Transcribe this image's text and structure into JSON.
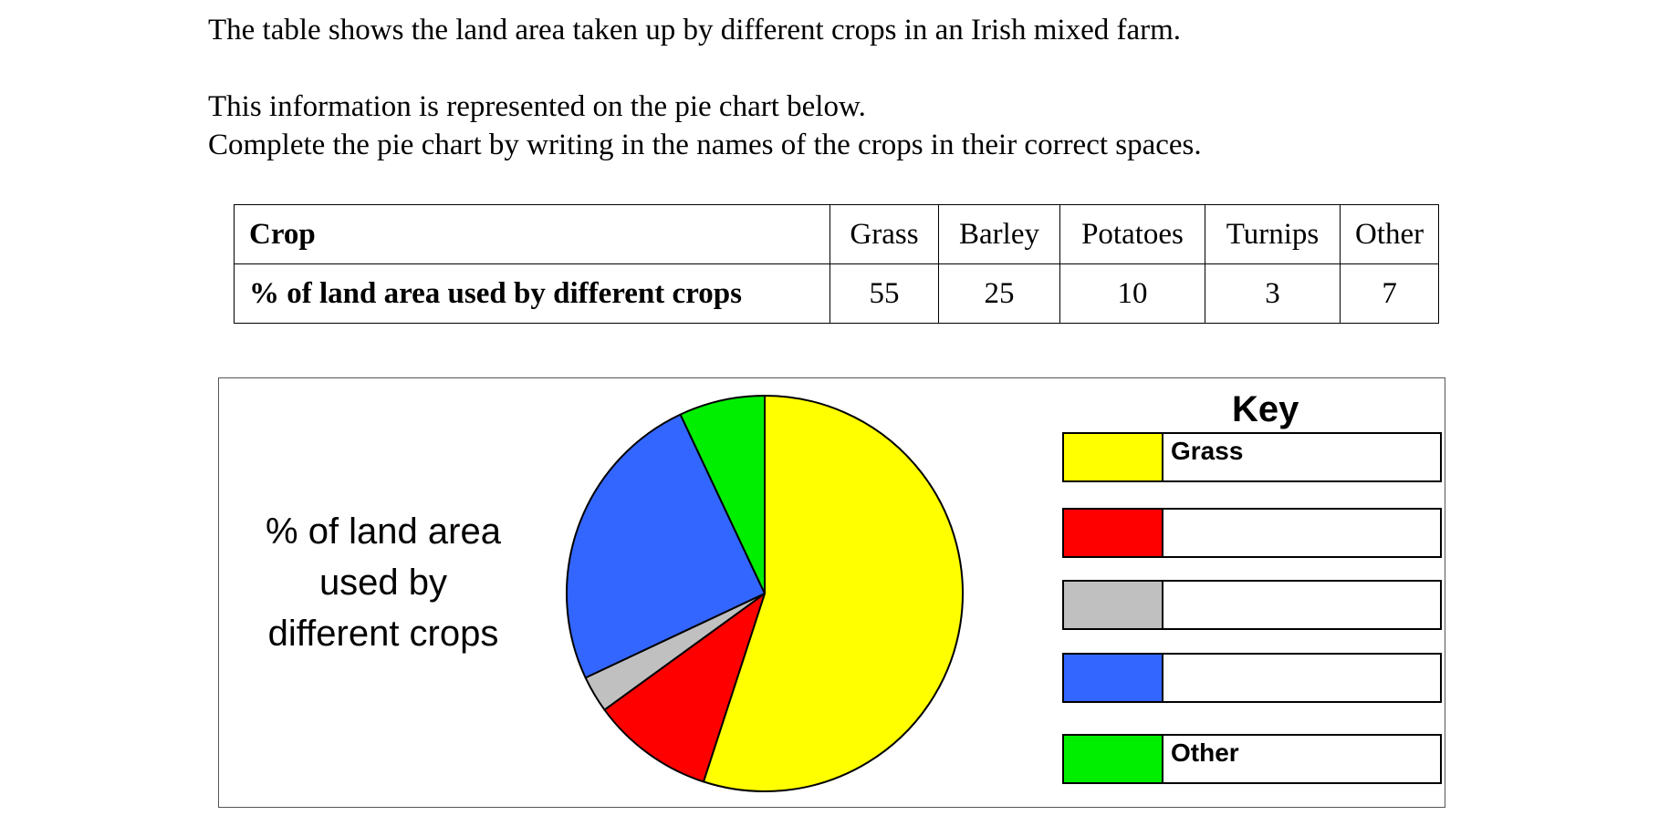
{
  "intro": {
    "line1": "The table shows the land area taken up by different crops in an Irish mixed farm.",
    "line2": "This information is represented on the pie chart below.",
    "line3": "Complete the pie chart by writing in the names of the crops in their correct spaces."
  },
  "table": {
    "header_label": "Crop",
    "row_label": "% of land area used  by different crops",
    "columns": [
      "Grass",
      "Barley",
      "Potatoes",
      "Turnips",
      "Other"
    ],
    "values": [
      "55",
      "25",
      "10",
      "3",
      "7"
    ]
  },
  "chart_data": {
    "type": "pie",
    "title": "% of land area used by different crops",
    "title_lines": [
      "% of land area",
      "used by",
      "different crops"
    ],
    "slices": [
      {
        "label": "Grass",
        "value": 55,
        "color": "#ffff00"
      },
      {
        "label": "Potatoes",
        "value": 10,
        "color": "#ff0000"
      },
      {
        "label": "Turnips",
        "value": 3,
        "color": "#c0c0c0"
      },
      {
        "label": "Barley",
        "value": 25,
        "color": "#3366ff"
      },
      {
        "label": "Other",
        "value": 7,
        "color": "#00ee00"
      }
    ],
    "start_angle": "12 o'clock",
    "direction": "clockwise",
    "legend_placement": "right"
  },
  "key": {
    "title": "Key",
    "rows": [
      {
        "color": "#ffff00",
        "label": "Grass"
      },
      {
        "color": "#ff0000",
        "label": ""
      },
      {
        "color": "#c0c0c0",
        "label": ""
      },
      {
        "color": "#3366ff",
        "label": ""
      },
      {
        "color": "#00ee00",
        "label": "Other"
      }
    ]
  }
}
